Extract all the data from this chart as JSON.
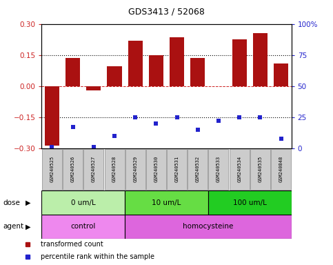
{
  "title": "GDS3413 / 52068",
  "samples": [
    "GSM240525",
    "GSM240526",
    "GSM240527",
    "GSM240528",
    "GSM240529",
    "GSM240530",
    "GSM240531",
    "GSM240532",
    "GSM240533",
    "GSM240534",
    "GSM240535",
    "GSM240848"
  ],
  "bar_values": [
    -0.285,
    0.135,
    -0.02,
    0.095,
    0.22,
    0.15,
    0.235,
    0.135,
    0.0,
    0.225,
    0.255,
    0.11
  ],
  "percentile_values": [
    1,
    17,
    1,
    10,
    25,
    20,
    25,
    15,
    22,
    25,
    25,
    8
  ],
  "bar_color": "#AA1111",
  "percentile_color": "#2222CC",
  "ylim_left": [
    -0.3,
    0.3
  ],
  "ylim_right": [
    0,
    100
  ],
  "yticks_left": [
    -0.3,
    -0.15,
    0.0,
    0.15,
    0.3
  ],
  "yticks_right": [
    0,
    25,
    50,
    75,
    100
  ],
  "ytick_labels_right": [
    "0",
    "25",
    "50",
    "75",
    "100%"
  ],
  "hlines_dotted": [
    -0.15,
    0.15
  ],
  "hline_dashed": 0.0,
  "dose_groups": [
    {
      "label": "0 um/L",
      "start": 0,
      "end": 4,
      "color": "#BBEEAA"
    },
    {
      "label": "10 um/L",
      "start": 4,
      "end": 8,
      "color": "#66DD44"
    },
    {
      "label": "100 um/L",
      "start": 8,
      "end": 12,
      "color": "#22CC22"
    }
  ],
  "agent_groups": [
    {
      "label": "control",
      "start": 0,
      "end": 4,
      "color": "#EE88EE"
    },
    {
      "label": "homocysteine",
      "start": 4,
      "end": 12,
      "color": "#DD66DD"
    }
  ],
  "dose_label": "dose",
  "agent_label": "agent",
  "legend_items": [
    {
      "label": "transformed count",
      "color": "#AA1111"
    },
    {
      "label": "percentile rank within the sample",
      "color": "#2222CC"
    }
  ],
  "background_color": "#FFFFFF",
  "tick_color_left": "#CC2222",
  "tick_color_right": "#2222CC",
  "sample_box_color": "#CCCCCC",
  "bar_width": 0.7
}
